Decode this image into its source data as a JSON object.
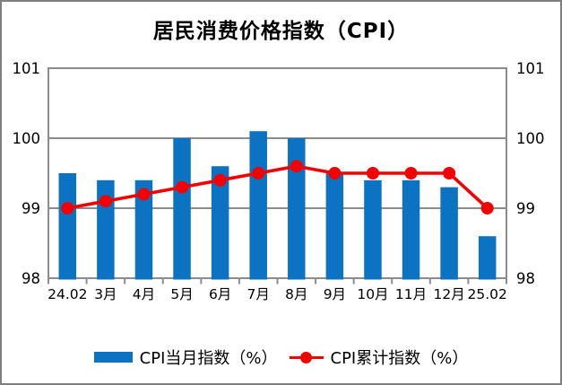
{
  "chart_data": {
    "type": "bar+line",
    "title": "居民消费价格指数（CPI）",
    "categories": [
      "24.02",
      "3月",
      "4月",
      "5月",
      "6月",
      "7月",
      "8月",
      "9月",
      "10月",
      "11月",
      "12月",
      "25.02"
    ],
    "series": [
      {
        "name": "CPI当月指数（%）",
        "type": "bar",
        "color": "#0c73c2",
        "values": [
          99.5,
          99.4,
          99.4,
          100.0,
          99.6,
          100.1,
          100.0,
          99.5,
          99.4,
          99.4,
          99.3,
          98.6
        ]
      },
      {
        "name": "CPI累计指数（%）",
        "type": "line",
        "color": "#f40000",
        "values": [
          99.0,
          99.1,
          99.2,
          99.3,
          99.4,
          99.5,
          99.6,
          99.5,
          99.5,
          99.5,
          99.5,
          99.0
        ]
      }
    ],
    "y_axis_left": {
      "ticks": [
        101,
        100,
        99,
        98
      ],
      "min": 98,
      "max": 101
    },
    "y_axis_right": {
      "ticks": [
        101,
        100,
        99,
        98
      ],
      "min": 98,
      "max": 101
    },
    "gridlines": [
      100,
      99
    ],
    "legend_position": "bottom",
    "grid_color": "#8c8c8c",
    "text_color": "#000000",
    "background": "#ffffff",
    "frame_border_color": "#7f7f7f"
  }
}
